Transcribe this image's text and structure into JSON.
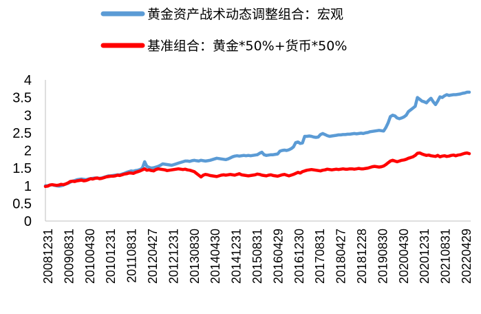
{
  "chart_data": {
    "type": "line",
    "legend_position": "top",
    "grid": false,
    "ylim": [
      0,
      4
    ],
    "y_ticks": [
      "0",
      "0.5",
      "1",
      "1.5",
      "2",
      "2.5",
      "3",
      "3.5",
      "4"
    ],
    "x_tick_labels": [
      "20081231",
      "20090831",
      "20100430",
      "20101231",
      "20110831",
      "20120427",
      "20121231",
      "20130830",
      "20140430",
      "20141231",
      "20150831",
      "20160429",
      "20161230",
      "20170831",
      "20180427",
      "20181228",
      "20190830",
      "20200430",
      "20201231",
      "20210831",
      "20220429"
    ],
    "series": [
      {
        "name": "黄金资产战术动态调整组合：宏观",
        "color": "#5b9bd5",
        "values": [
          1.0,
          1.0,
          1.02,
          1.03,
          1.01,
          1.0,
          0.99,
          1.0,
          1.02,
          1.05,
          1.07,
          1.1,
          1.13,
          1.15,
          1.17,
          1.18,
          1.19,
          1.18,
          1.17,
          1.19,
          1.2,
          1.21,
          1.22,
          1.22,
          1.21,
          1.22,
          1.24,
          1.26,
          1.28,
          1.28,
          1.29,
          1.3,
          1.31,
          1.31,
          1.33,
          1.35,
          1.38,
          1.4,
          1.42,
          1.41,
          1.43,
          1.44,
          1.46,
          1.5,
          1.68,
          1.55,
          1.52,
          1.5,
          1.51,
          1.53,
          1.55,
          1.58,
          1.62,
          1.61,
          1.6,
          1.59,
          1.58,
          1.6,
          1.62,
          1.64,
          1.66,
          1.68,
          1.7,
          1.7,
          1.69,
          1.71,
          1.72,
          1.71,
          1.7,
          1.72,
          1.71,
          1.7,
          1.71,
          1.72,
          1.74,
          1.76,
          1.78,
          1.77,
          1.76,
          1.75,
          1.74,
          1.76,
          1.79,
          1.82,
          1.84,
          1.85,
          1.84,
          1.85,
          1.86,
          1.85,
          1.86,
          1.85,
          1.86,
          1.87,
          1.88,
          1.92,
          1.95,
          1.88,
          1.86,
          1.87,
          1.88,
          1.88,
          1.89,
          1.9,
          1.98,
          2.0,
          2.01,
          2.0,
          2.02,
          2.05,
          2.1,
          2.22,
          2.24,
          2.2,
          2.21,
          2.4,
          2.4,
          2.41,
          2.4,
          2.38,
          2.37,
          2.38,
          2.45,
          2.48,
          2.45,
          2.42,
          2.4,
          2.41,
          2.42,
          2.43,
          2.44,
          2.44,
          2.45,
          2.45,
          2.46,
          2.46,
          2.47,
          2.48,
          2.47,
          2.48,
          2.49,
          2.48,
          2.5,
          2.51,
          2.53,
          2.54,
          2.55,
          2.56,
          2.57,
          2.56,
          2.55,
          2.65,
          2.78,
          2.96,
          3.0,
          2.98,
          2.92,
          2.9,
          2.92,
          2.95,
          3.0,
          3.1,
          3.15,
          3.2,
          3.25,
          3.5,
          3.45,
          3.4,
          3.38,
          3.35,
          3.42,
          3.48,
          3.38,
          3.3,
          3.4,
          3.52,
          3.5,
          3.55,
          3.58,
          3.56,
          3.57,
          3.58,
          3.58,
          3.59,
          3.6,
          3.62,
          3.63,
          3.65,
          3.65
        ]
      },
      {
        "name": "基准组合：黄金*50%+货币*50%",
        "color": "#ff0000",
        "values": [
          0.98,
          0.99,
          1.02,
          1.03,
          1.02,
          1.01,
          1.02,
          1.04,
          1.03,
          1.05,
          1.08,
          1.12,
          1.13,
          1.12,
          1.14,
          1.15,
          1.16,
          1.14,
          1.15,
          1.17,
          1.2,
          1.19,
          1.21,
          1.22,
          1.2,
          1.21,
          1.23,
          1.25,
          1.26,
          1.27,
          1.27,
          1.28,
          1.3,
          1.29,
          1.31,
          1.33,
          1.34,
          1.36,
          1.36,
          1.35,
          1.38,
          1.4,
          1.42,
          1.45,
          1.48,
          1.44,
          1.45,
          1.43,
          1.42,
          1.46,
          1.48,
          1.47,
          1.46,
          1.45,
          1.43,
          1.44,
          1.45,
          1.46,
          1.47,
          1.48,
          1.47,
          1.46,
          1.47,
          1.45,
          1.44,
          1.42,
          1.4,
          1.35,
          1.3,
          1.25,
          1.3,
          1.32,
          1.31,
          1.29,
          1.28,
          1.27,
          1.26,
          1.28,
          1.3,
          1.31,
          1.3,
          1.31,
          1.32,
          1.31,
          1.3,
          1.32,
          1.34,
          1.31,
          1.3,
          1.29,
          1.28,
          1.29,
          1.3,
          1.31,
          1.33,
          1.32,
          1.3,
          1.29,
          1.28,
          1.3,
          1.31,
          1.29,
          1.28,
          1.27,
          1.29,
          1.31,
          1.32,
          1.3,
          1.28,
          1.3,
          1.32,
          1.35,
          1.38,
          1.36,
          1.4,
          1.42,
          1.44,
          1.45,
          1.46,
          1.45,
          1.44,
          1.43,
          1.42,
          1.44,
          1.45,
          1.47,
          1.46,
          1.45,
          1.46,
          1.47,
          1.46,
          1.47,
          1.48,
          1.47,
          1.47,
          1.48,
          1.48,
          1.47,
          1.48,
          1.49,
          1.48,
          1.48,
          1.49,
          1.5,
          1.52,
          1.54,
          1.55,
          1.54,
          1.53,
          1.54,
          1.56,
          1.6,
          1.65,
          1.7,
          1.72,
          1.7,
          1.68,
          1.7,
          1.72,
          1.73,
          1.75,
          1.78,
          1.8,
          1.82,
          1.86,
          1.92,
          1.93,
          1.9,
          1.88,
          1.86,
          1.87,
          1.85,
          1.84,
          1.83,
          1.86,
          1.82,
          1.84,
          1.85,
          1.83,
          1.84,
          1.86,
          1.87,
          1.85,
          1.87,
          1.88,
          1.9,
          1.92,
          1.93,
          1.91
        ]
      }
    ]
  }
}
